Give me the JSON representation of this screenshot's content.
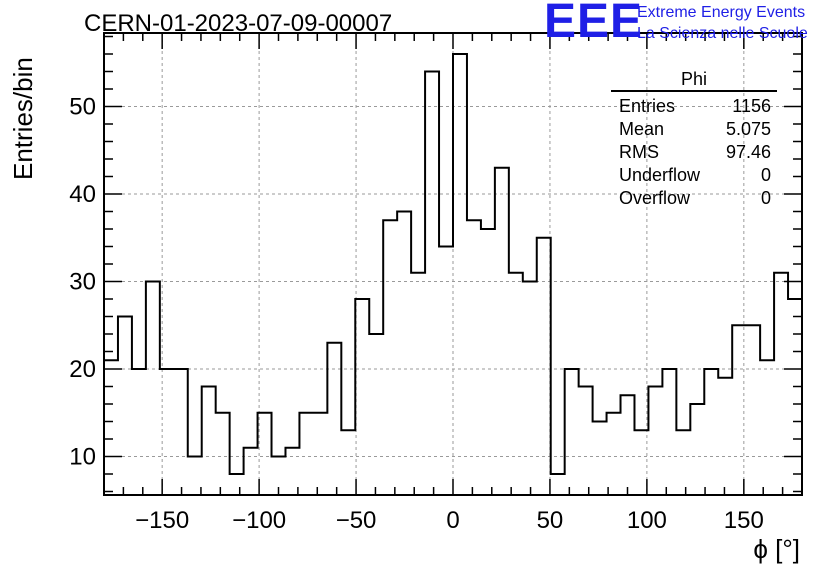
{
  "title": "CERN-01-2023-07-09-00007",
  "logo": {
    "mark": "EEE",
    "line1": "Extreme Energy Events",
    "line2": "La Scienza nelle Scuole",
    "color": "#1f1fe6"
  },
  "stats": {
    "name": "Phi",
    "rows": [
      {
        "label": "Entries",
        "value": "1156"
      },
      {
        "label": "Mean",
        "value": "5.075"
      },
      {
        "label": "RMS",
        "value": "97.46"
      },
      {
        "label": "Underflow",
        "value": "0"
      },
      {
        "label": "Overflow",
        "value": "0"
      }
    ]
  },
  "chart_data": {
    "type": "bar",
    "style": "step-histogram",
    "xlabel": "ϕ [°]",
    "ylabel": "Entries/bin",
    "xlim": [
      -180,
      180
    ],
    "ylim": [
      5.6,
      58.4
    ],
    "bin_width": 7.2,
    "x_ticks": [
      -150,
      -100,
      -50,
      0,
      50,
      100,
      150
    ],
    "y_ticks": [
      10,
      20,
      30,
      40,
      50
    ],
    "grid": true,
    "line_color": "#000000",
    "grid_color": "#9a9a9a",
    "values": [
      21,
      26,
      20,
      30,
      20,
      20,
      10,
      18,
      15,
      8,
      11,
      15,
      10,
      11,
      15,
      15,
      23,
      13,
      28,
      24,
      37,
      38,
      31,
      54,
      34,
      56,
      37,
      36,
      43,
      31,
      30,
      35,
      8,
      20,
      18,
      14,
      15,
      17,
      13,
      18,
      20,
      13,
      16,
      20,
      19,
      25,
      25,
      21,
      31,
      28
    ]
  }
}
